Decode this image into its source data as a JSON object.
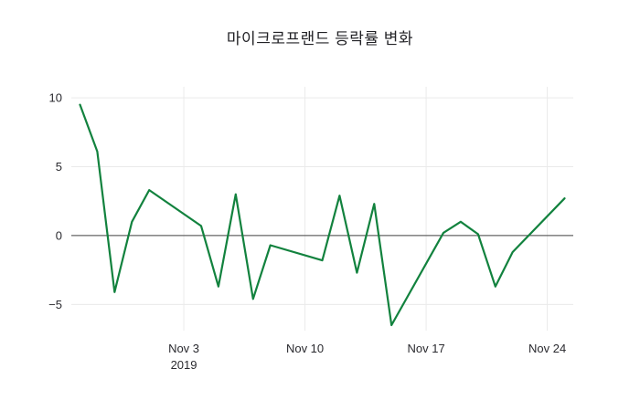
{
  "figure": {
    "title": "마이크로프랜드 등락률 변화"
  },
  "chart_data": {
    "type": "line",
    "title": "마이크로프랜드 등락률 변화",
    "series": [
      {
        "name": "등락률",
        "color": "#12823e",
        "x": [
          "2019-10-28",
          "2019-10-29",
          "2019-10-30",
          "2019-10-31",
          "2019-11-01",
          "2019-11-04",
          "2019-11-05",
          "2019-11-06",
          "2019-11-07",
          "2019-11-08",
          "2019-11-11",
          "2019-11-12",
          "2019-11-13",
          "2019-11-14",
          "2019-11-15",
          "2019-11-18",
          "2019-11-19",
          "2019-11-20",
          "2019-11-21",
          "2019-11-22",
          "2019-11-25"
        ],
        "values": [
          9.5,
          6.1,
          -4.1,
          1.0,
          3.3,
          0.7,
          -3.7,
          3.0,
          -4.6,
          -0.7,
          -1.8,
          2.9,
          -2.7,
          2.3,
          -6.5,
          0.2,
          1.0,
          0.1,
          -3.7,
          -1.2,
          2.7
        ]
      }
    ],
    "xlabel": "",
    "ylabel": "",
    "ylim": [
      -6.9,
      10.8
    ],
    "xlim": [
      "2019-10-27T12:00:00Z",
      "2019-11-25T12:00:00Z"
    ],
    "yticks": [
      {
        "value": 10,
        "label": "10"
      },
      {
        "value": 5,
        "label": "5"
      },
      {
        "value": 0,
        "label": "0"
      },
      {
        "value": -5,
        "label": "−5"
      }
    ],
    "xticks": [
      {
        "date": "2019-11-03",
        "label": "Nov 3",
        "sublabel": "2019"
      },
      {
        "date": "2019-11-10",
        "label": "Nov 10",
        "sublabel": ""
      },
      {
        "date": "2019-11-17",
        "label": "Nov 17",
        "sublabel": ""
      },
      {
        "date": "2019-11-24",
        "label": "Nov 24",
        "sublabel": ""
      }
    ],
    "grid": true,
    "grid_color": "#eaeaea",
    "zero_line_color": "#444444",
    "background": "#ffffff",
    "legend_position": "none"
  }
}
